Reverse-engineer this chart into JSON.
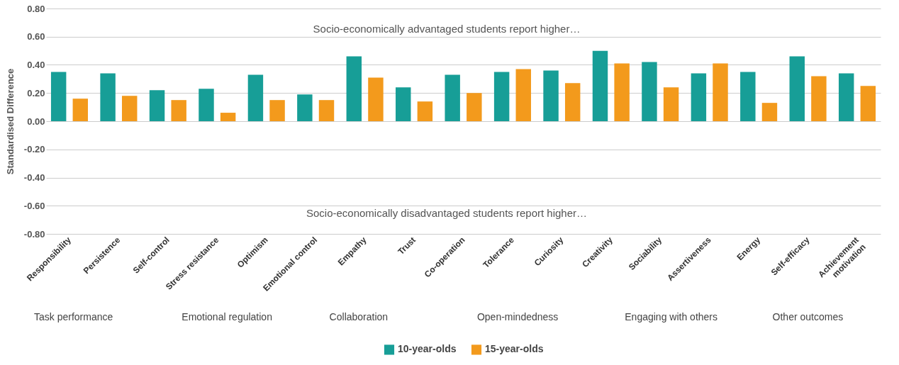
{
  "chart_data": {
    "type": "bar",
    "ylabel": "Standardised Difference",
    "categories": [
      "Responsibility",
      "Persistence",
      "Self-control",
      "Stress resistance",
      "Optimism",
      "Emotional control",
      "Empathy",
      "Trust",
      "Co-operation",
      "Tolerance",
      "Curiosity",
      "Creativity",
      "Sociability",
      "Assertiveness",
      "Energy",
      "Self-efficacy",
      "Achievement motivation"
    ],
    "series": [
      {
        "name": "10-year-olds",
        "color": "#179e97",
        "values": [
          0.35,
          0.34,
          0.22,
          0.23,
          0.33,
          0.19,
          0.46,
          0.24,
          0.33,
          0.35,
          0.36,
          0.5,
          0.42,
          0.34,
          0.35,
          0.46,
          0.34
        ]
      },
      {
        "name": "15-year-olds",
        "color": "#f39a1c",
        "values": [
          0.16,
          0.18,
          0.15,
          0.06,
          0.15,
          0.15,
          0.31,
          0.14,
          0.2,
          0.37,
          0.27,
          0.41,
          0.24,
          0.41,
          0.13,
          0.32,
          0.25
        ]
      }
    ],
    "ylim": [
      -0.8,
      0.8
    ],
    "yticks": [
      {
        "value": -0.8,
        "label": "-0.80"
      },
      {
        "value": -0.6,
        "label": "-0.60"
      },
      {
        "value": -0.4,
        "label": "-0.40"
      },
      {
        "value": -0.2,
        "label": "-0.20"
      },
      {
        "value": 0,
        "label": "0.00"
      },
      {
        "value": 0.2,
        "label": "0.20"
      },
      {
        "value": 0.4,
        "label": "0.40"
      },
      {
        "value": 0.6,
        "label": "0.60"
      },
      {
        "value": 0.8,
        "label": "0.80"
      }
    ],
    "grid": "y",
    "legend": "bottom",
    "annotations": [
      "Socio-economically advantaged students report higher…",
      "Socio-economically disadvantaged students report higher…",
      "Task performance",
      "Emotional regulation",
      "Collaboration",
      "Open-mindedness",
      "Engaging with others",
      "Other outcomes"
    ]
  }
}
